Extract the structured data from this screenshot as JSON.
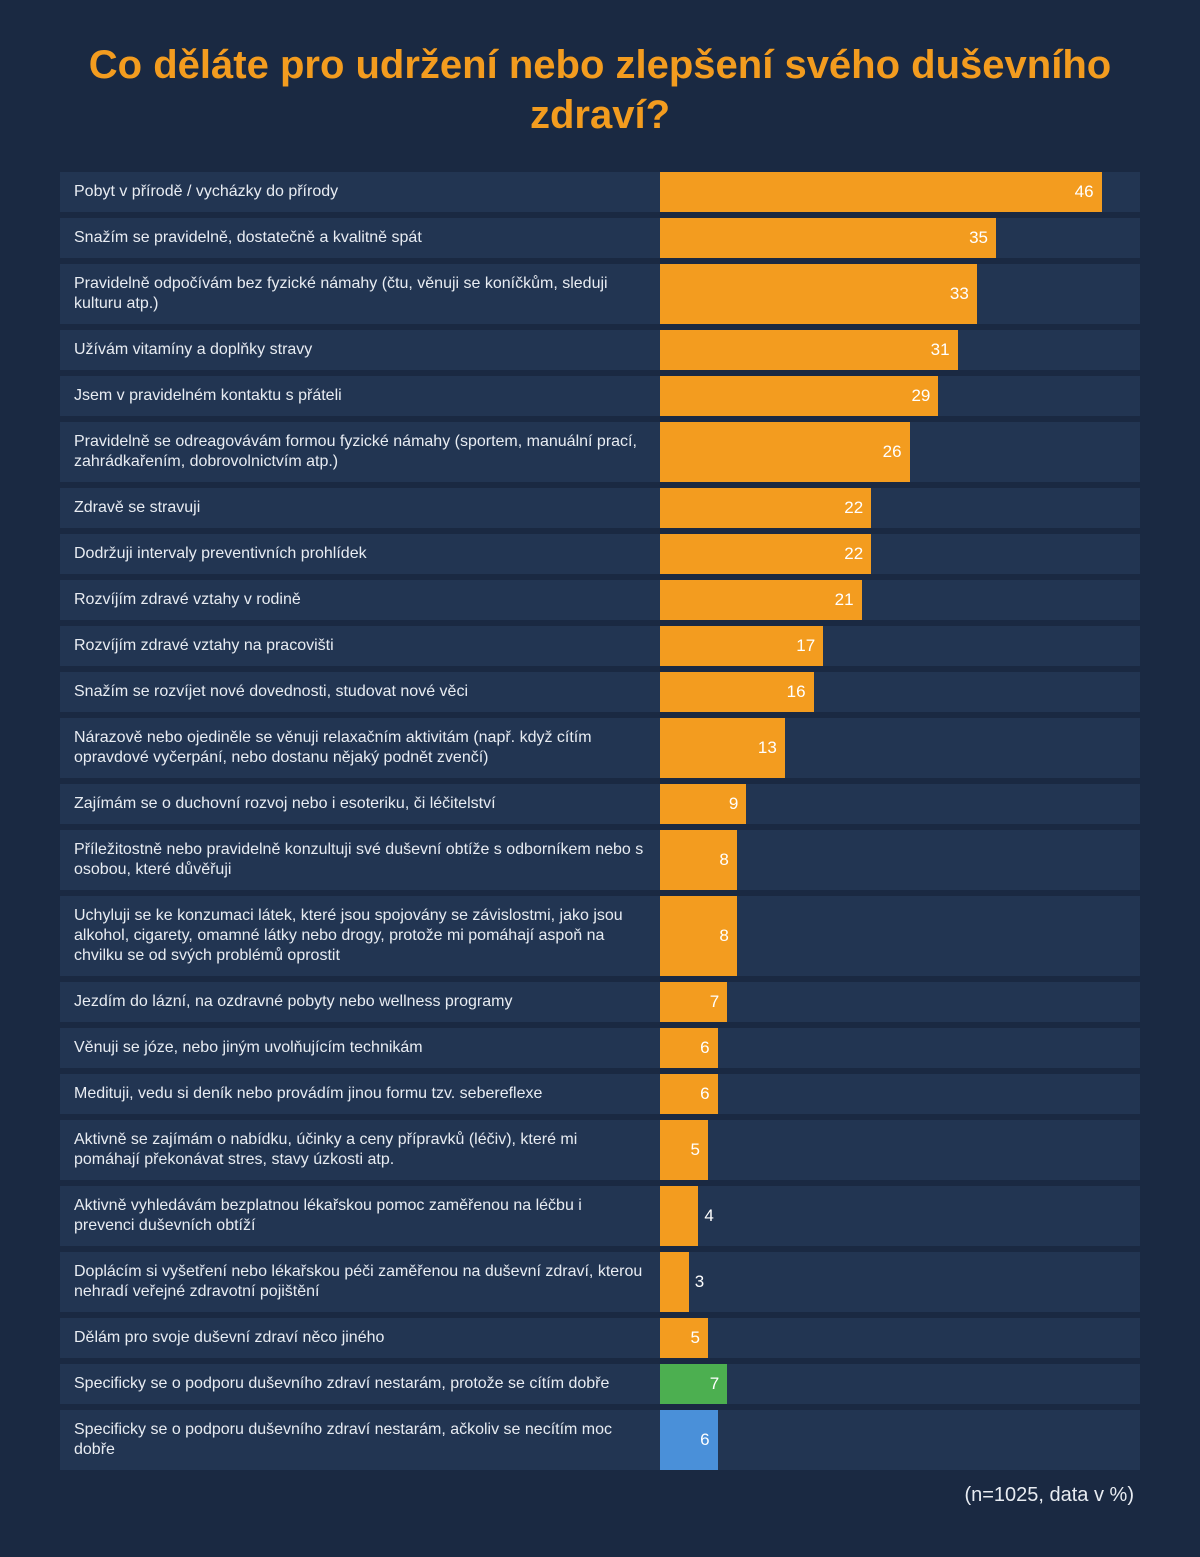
{
  "title": "Co děláte pro udržení nebo zlepšení svého duševního zdraví?",
  "footnote": "(n=1025, data v %)",
  "chart": {
    "type": "bar",
    "orientation": "horizontal",
    "max_value": 50,
    "background_color": "#1a2942",
    "row_background": "#223552",
    "label_color": "#e8ecf2",
    "label_fontsize": 16,
    "value_fontsize": 17,
    "value_color": "#ffffff",
    "title_color": "#f39c1f",
    "title_fontsize": 40,
    "label_cell_width": 600,
    "bar_cell_width": 480,
    "colors": {
      "primary": "#f39c1f",
      "green": "#4caf50",
      "blue": "#4a90d9"
    },
    "outside_label_threshold": 5,
    "items": [
      {
        "label": "Pobyt v přírodě / vycházky do přírody",
        "value": 46,
        "color": "primary"
      },
      {
        "label": "Snažím se pravidelně, dostatečně a kvalitně spát",
        "value": 35,
        "color": "primary"
      },
      {
        "label": "Pravidelně odpočívám bez fyzické námahy (čtu, věnuji se koníčkům, sleduji kulturu atp.)",
        "value": 33,
        "color": "primary"
      },
      {
        "label": "Užívám vitamíny a doplňky stravy",
        "value": 31,
        "color": "primary"
      },
      {
        "label": "Jsem v pravidelném kontaktu s přáteli",
        "value": 29,
        "color": "primary"
      },
      {
        "label": "Pravidelně se odreagovávám formou fyzické námahy (sportem, manuální prací, zahrádkařením, dobrovolnictvím atp.)",
        "value": 26,
        "color": "primary"
      },
      {
        "label": "Zdravě se stravuji",
        "value": 22,
        "color": "primary"
      },
      {
        "label": "Dodržuji intervaly preventivních prohlídek",
        "value": 22,
        "color": "primary"
      },
      {
        "label": "Rozvíjím zdravé vztahy v rodině",
        "value": 21,
        "color": "primary"
      },
      {
        "label": "Rozvíjím zdravé vztahy na pracovišti",
        "value": 17,
        "color": "primary"
      },
      {
        "label": "Snažím se rozvíjet nové dovednosti, studovat nové věci",
        "value": 16,
        "color": "primary"
      },
      {
        "label": "Nárazově nebo ojediněle se věnuji relaxačním aktivitám (např. když cítím opravdové vyčerpání, nebo dostanu nějaký podnět zvenčí)",
        "value": 13,
        "color": "primary"
      },
      {
        "label": "Zajímám se o duchovní rozvoj nebo i esoteriku, či léčitelství",
        "value": 9,
        "color": "primary"
      },
      {
        "label": "Příležitostně nebo pravidelně konzultuji své duševní obtíže s odborníkem nebo s osobou, které důvěřuji",
        "value": 8,
        "color": "primary"
      },
      {
        "label": "Uchyluji se ke konzumaci látek, které jsou spojovány se závislostmi, jako jsou alkohol, cigarety, omamné látky nebo drogy, protože mi pomáhají aspoň na chvilku se od svých problémů oprostit",
        "value": 8,
        "color": "primary"
      },
      {
        "label": "Jezdím do lázní, na ozdravné pobyty nebo wellness programy",
        "value": 7,
        "color": "primary"
      },
      {
        "label": "Věnuji se józe, nebo jiným uvolňujícím technikám",
        "value": 6,
        "color": "primary"
      },
      {
        "label": "Medituji, vedu si deník nebo provádím jinou formu tzv. sebereflexe",
        "value": 6,
        "color": "primary"
      },
      {
        "label": "Aktivně se zajímám o nabídku, účinky a ceny přípravků (léčiv), které mi pomáhají překonávat stres, stavy úzkosti atp.",
        "value": 5,
        "color": "primary"
      },
      {
        "label": "Aktivně vyhledávám bezplatnou lékařskou pomoc zaměřenou na léčbu i prevenci duševních obtíží",
        "value": 4,
        "color": "primary"
      },
      {
        "label": "Doplácím si vyšetření nebo lékařskou péči zaměřenou na duševní zdraví, kterou nehradí veřejné zdravotní pojištění",
        "value": 3,
        "color": "primary"
      },
      {
        "label": "Dělám pro svoje duševní zdraví něco jiného",
        "value": 5,
        "color": "primary"
      },
      {
        "label": "Specificky se o podporu  duševního zdraví nestarám, protože se cítím dobře",
        "value": 7,
        "color": "green"
      },
      {
        "label": "Specificky se o podporu  duševního zdraví nestarám, ačkoliv se necítím moc dobře",
        "value": 6,
        "color": "blue"
      }
    ]
  }
}
